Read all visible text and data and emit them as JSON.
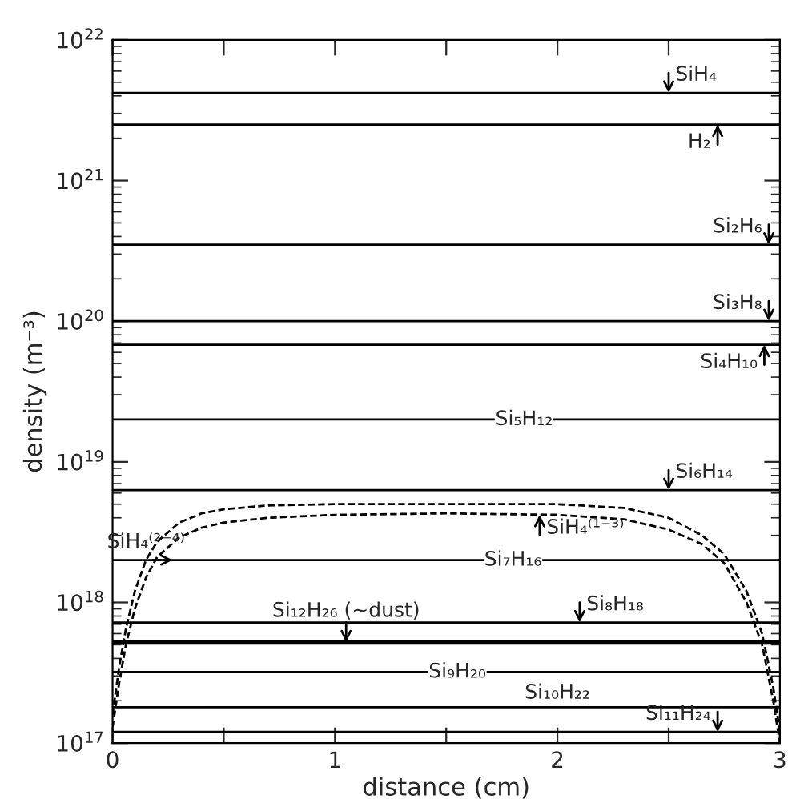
{
  "chart_data": {
    "type": "line",
    "xlabel": "distance (cm)",
    "ylabel": "density (m⁻³)",
    "log": "y",
    "grid": false,
    "xlim": [
      0,
      3
    ],
    "xticks": [
      0,
      {
        "value": 0.5,
        "label": null
      },
      1,
      {
        "value": 1.5,
        "label": null
      },
      2,
      {
        "value": 2.5,
        "label": null
      },
      3
    ],
    "ylim": [
      1e+17,
      1e+22
    ],
    "yticks": [
      {
        "value": 1e+17,
        "label": "10$^{17}$"
      },
      {
        "value": 1e+18,
        "label": "10$^{18}$"
      },
      {
        "value": 1e+19,
        "label": "10$^{19}$"
      },
      {
        "value": 1e+20,
        "label": "10$^{20}$"
      },
      {
        "value": 1e+21,
        "label": "10$^{21}$"
      },
      {
        "value": 1e+22,
        "label": "10$^{22}$"
      }
    ],
    "series": [
      {
        "color": "#000000",
        "line_style": "solid",
        "x": [
          0,
          3
        ],
        "values": [
          4.2e+21,
          4.2e+21
        ]
      },
      {
        "color": "#000000",
        "line_style": "solid",
        "x": [
          0,
          3
        ],
        "values": [
          2.5e+21,
          2.5e+21
        ]
      },
      {
        "color": "#000000",
        "line_style": "solid",
        "x": [
          0,
          3
        ],
        "values": [
          3.5e+20,
          3.5e+20
        ]
      },
      {
        "color": "#000000",
        "line_style": "solid",
        "x": [
          0,
          3
        ],
        "values": [
          1e+20,
          1e+20
        ]
      },
      {
        "color": "#000000",
        "line_style": "solid",
        "x": [
          0,
          3
        ],
        "values": [
          6.8e+19,
          6.8e+19
        ]
      },
      {
        "color": "#000000",
        "line_style": "solid",
        "x": [
          0,
          3
        ],
        "values": [
          2e+19,
          2e+19
        ]
      },
      {
        "color": "#000000",
        "line_style": "solid",
        "x": [
          0,
          3
        ],
        "values": [
          6.3e+18,
          6.3e+18
        ]
      },
      {
        "color": "#000000",
        "line_style": "solid",
        "x": [
          0,
          3
        ],
        "values": [
          2e+18,
          2e+18
        ]
      },
      {
        "color": "#000000",
        "line_style": "solid",
        "x": [
          0,
          3
        ],
        "values": [
          7.2e+17,
          7.2e+17
        ]
      },
      {
        "color": "#000000",
        "line_style": "solid",
        "x": [
          0,
          3
        ],
        "values": [
          5.2e+17,
          5.2e+17
        ]
      },
      {
        "color": "#000000",
        "line_style": "solid",
        "x": [
          0,
          3
        ],
        "values": [
          3.2e+17,
          3.2e+17
        ]
      },
      {
        "color": "#000000",
        "line_style": "solid",
        "x": [
          0,
          3
        ],
        "values": [
          1.8e+17,
          1.8e+17
        ]
      },
      {
        "color": "#000000",
        "line_style": "solid",
        "x": [
          0,
          3
        ],
        "values": [
          1.2e+17,
          1.2e+17
        ]
      },
      {
        "color": "#000000",
        "line_style": "dashed",
        "x": [
          0,
          0.03,
          0.06,
          0.1,
          0.15,
          0.2,
          0.3,
          0.4,
          0.5,
          0.7,
          1.0,
          1.5,
          2.0,
          2.3,
          2.5,
          2.65,
          2.75,
          2.85,
          2.92,
          2.97,
          3.0
        ],
        "values": [
          1.6e+17,
          3.5e+17,
          6.5e+17,
          1.2e+18,
          2e+18,
          2.7e+18,
          3.7e+18,
          4.3e+18,
          4.6e+18,
          4.9e+18,
          5e+18,
          5e+18,
          5e+18,
          4.7e+18,
          4e+18,
          3e+18,
          2.2e+18,
          1.2e+18,
          6e+17,
          2.5e+17,
          1.2e+17
        ]
      },
      {
        "color": "#000000",
        "line_style": "dashed",
        "x": [
          0,
          0.03,
          0.06,
          0.1,
          0.15,
          0.2,
          0.3,
          0.4,
          0.5,
          0.7,
          1.0,
          1.5,
          2.0,
          2.3,
          2.5,
          2.65,
          2.75,
          2.85,
          2.92,
          2.97,
          3.0
        ],
        "values": [
          1.3e+17,
          2.7e+17,
          5e+17,
          9e+17,
          1.5e+18,
          2.1e+18,
          2.9e+18,
          3.4e+18,
          3.7e+18,
          4e+18,
          4.2e+18,
          4.3e+18,
          4.2e+18,
          3.9e+18,
          3.3e+18,
          2.6e+18,
          1.9e+18,
          1e+18,
          5e+17,
          2e+17,
          1e+17
        ]
      }
    ],
    "annotations": [
      {
        "text": "SiH₄",
        "x": 2.5,
        "y": 4.2e+21
      },
      {
        "text": "H₂",
        "x": 2.72,
        "y": 2.5e+21
      },
      {
        "text": "Si₂H₆",
        "x": 2.95,
        "y": 3.5e+20
      },
      {
        "text": "Si₃H₈",
        "x": 2.95,
        "y": 1e+20
      },
      {
        "text": "Si₄H₁₀",
        "x": 2.93,
        "y": 6.8e+19
      },
      {
        "text": "Si₅H₁₂",
        "x": 1.85,
        "y": 2e+19
      },
      {
        "text": "Si₆H₁₄",
        "x": 2.5,
        "y": 6.3e+18
      },
      {
        "text": "SiH₄⁽¹⁻³⁾",
        "x": 1.92,
        "y": 4.2e+18
      },
      {
        "text": "SiH₄⁽²⁻⁴⁾",
        "x": 0.27,
        "y": 2e+18
      },
      {
        "text": "Si₇H₁₆",
        "x": 1.8,
        "y": 2e+18
      },
      {
        "text": "Si₈H₁₈",
        "x": 2.1,
        "y": 7.2e+17
      },
      {
        "text": "Si₁₂H₂₆ (~dust)",
        "x": 1.05,
        "y": 5.2e+17
      },
      {
        "text": "Si₉H₂₀",
        "x": 1.55,
        "y": 3.2e+17
      },
      {
        "text": "Si₁₀H₂₂",
        "x": 2.0,
        "y": 1.8e+17
      },
      {
        "text": "Si₁₁H₂₄",
        "x": 2.72,
        "y": 1.2e+17
      }
    ]
  }
}
